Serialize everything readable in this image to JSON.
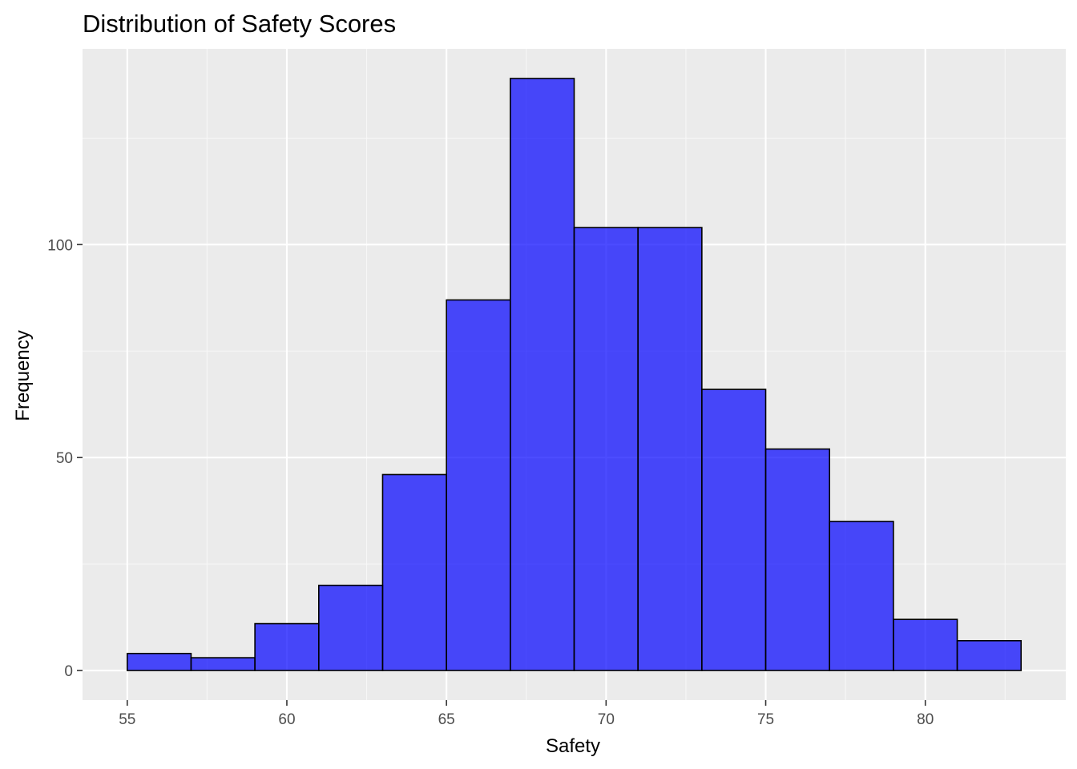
{
  "chart_data": {
    "type": "bar",
    "subtype": "histogram",
    "title": "Distribution of Safety Scores",
    "xlabel": "Safety",
    "ylabel": "Frequency",
    "bin_width": 2,
    "bins": [
      {
        "x0": 55,
        "x1": 57,
        "count": 4
      },
      {
        "x0": 57,
        "x1": 59,
        "count": 3
      },
      {
        "x0": 59,
        "x1": 61,
        "count": 11
      },
      {
        "x0": 61,
        "x1": 63,
        "count": 20
      },
      {
        "x0": 63,
        "x1": 65,
        "count": 46
      },
      {
        "x0": 65,
        "x1": 67,
        "count": 87
      },
      {
        "x0": 67,
        "x1": 69,
        "count": 139
      },
      {
        "x0": 69,
        "x1": 71,
        "count": 104
      },
      {
        "x0": 71,
        "x1": 73,
        "count": 104
      },
      {
        "x0": 73,
        "x1": 75,
        "count": 66
      },
      {
        "x0": 75,
        "x1": 77,
        "count": 52
      },
      {
        "x0": 77,
        "x1": 79,
        "count": 35
      },
      {
        "x0": 79,
        "x1": 81,
        "count": 12
      },
      {
        "x0": 81,
        "x1": 83,
        "count": 7
      }
    ],
    "xlim": [
      53.6,
      84.4
    ],
    "ylim": [
      -6.95,
      145.95
    ],
    "x_ticks": [
      55,
      60,
      65,
      70,
      75,
      80
    ],
    "x_tick_labels": [
      "55",
      "60",
      "65",
      "70",
      "75",
      "80"
    ],
    "y_ticks": [
      0,
      50,
      100
    ],
    "y_tick_labels": [
      "0",
      "50",
      "100"
    ],
    "grid": true,
    "legend": "none",
    "colors": {
      "bar_fill": "#0000ff",
      "bar_fill_opacity": 0.7,
      "bar_stroke": "#000000",
      "panel_background": "#ebebeb",
      "grid_major": "#ffffff",
      "grid_minor": "#f7f7f7",
      "tick_text": "#4d4d4d",
      "tick_mark": "#333333"
    }
  }
}
